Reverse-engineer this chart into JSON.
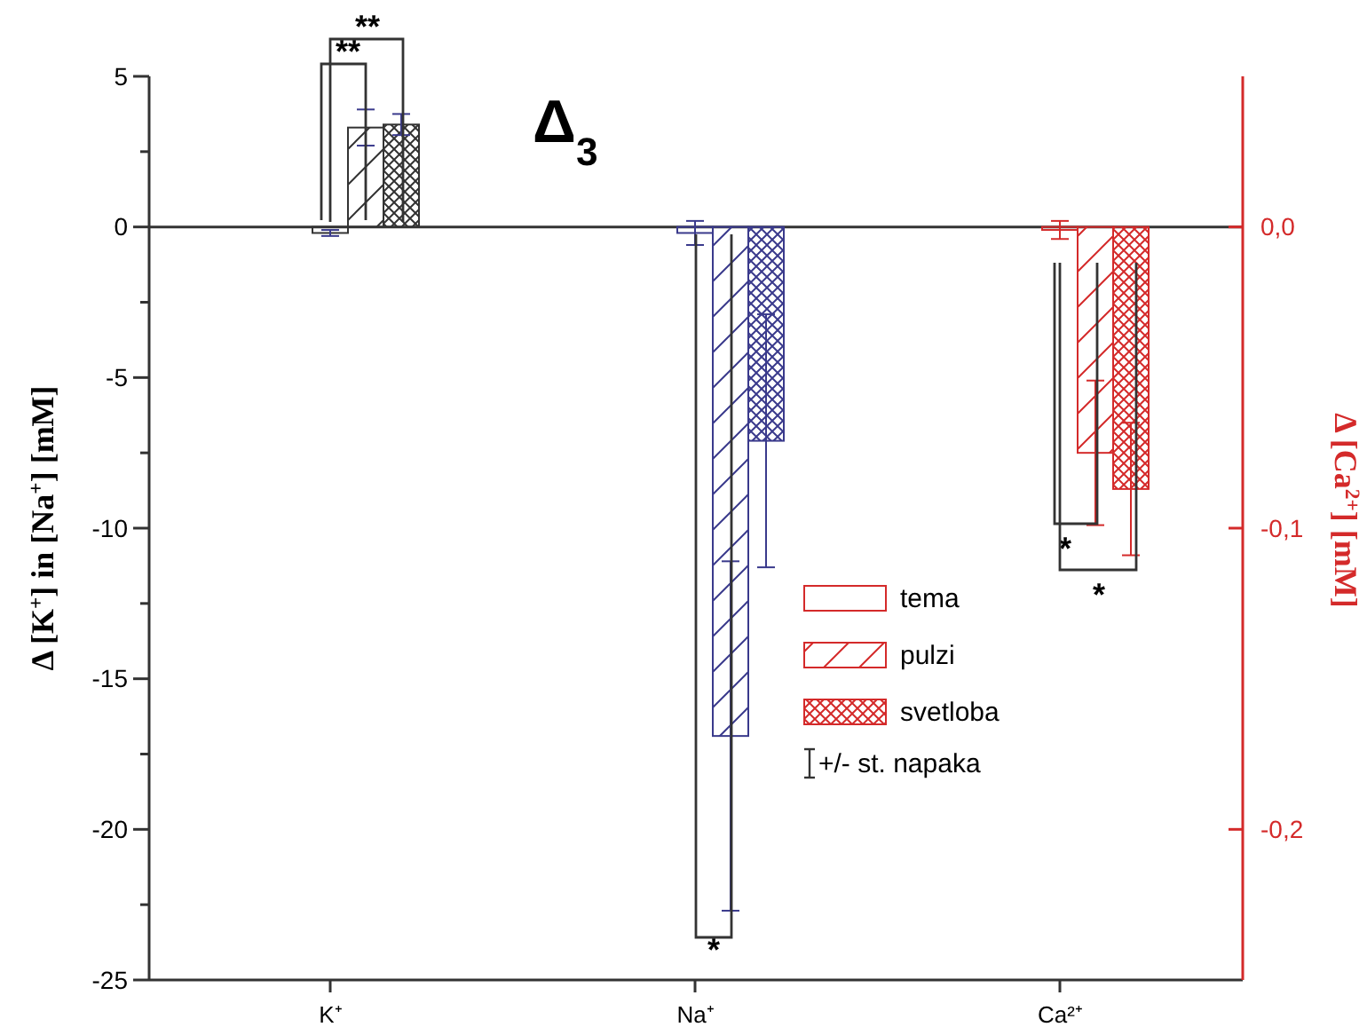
{
  "chart_data": {
    "type": "bar",
    "categories": [
      "K⁺",
      "Na⁺",
      "Ca²⁺"
    ],
    "ylabel": "Δ [K$^{+}$] in [Na$^{+}$] [mM]",
    "y2label": "Δ [Ca$^{2+}$] [mM]",
    "ylim": [
      -25,
      5
    ],
    "yticks": [
      -25,
      {
        "value": -22.5,
        "label": null
      },
      -20,
      {
        "value": -17.5,
        "label": null
      },
      -15,
      {
        "value": -12.5,
        "label": null
      },
      -10,
      {
        "value": -7.5,
        "label": null
      },
      -5,
      {
        "value": -2.5,
        "label": null
      },
      0,
      {
        "value": 2.5,
        "label": null
      },
      5
    ],
    "y2lim": [
      -0.25,
      0.05
    ],
    "y2ticks": [
      {
        "value": -0.2,
        "label": "-0,2"
      },
      {
        "value": -0.1,
        "label": "-0,1"
      },
      {
        "value": 0,
        "label": "0,0"
      }
    ],
    "series": [
      {
        "color": "#3a3a8c",
        "colors": [
          "#333333",
          "#3a3a8c",
          null
        ],
        "values": [
          -0.2,
          -0.2,
          null
        ],
        "errors": [
          0.1,
          0.4,
          null
        ]
      },
      {
        "color": "#3a3a8c",
        "colors": [
          "#333333",
          "#3a3a8c",
          null
        ],
        "values": [
          3.3,
          -16.9,
          null
        ],
        "errors": [
          0.6,
          5.8,
          null
        ]
      },
      {
        "color": "#3a3a8c",
        "colors": [
          "#333333",
          "#3a3a8c",
          null
        ],
        "values": [
          3.4,
          -7.1,
          null
        ],
        "errors": [
          0.35,
          4.2,
          null
        ]
      },
      {
        "name": "tema",
        "color": "#d42a2a",
        "axis": "y2",
        "values": [
          null,
          null,
          -0.001
        ],
        "errors": [
          null,
          null,
          0.003
        ]
      },
      {
        "name": "pulzi",
        "color": "#d42a2a",
        "axis": "y2",
        "values": [
          null,
          null,
          -0.075
        ],
        "errors": [
          null,
          null,
          0.024
        ]
      },
      {
        "name": "svetloba",
        "color": "#d42a2a",
        "axis": "y2",
        "values": [
          null,
          null,
          -0.087
        ],
        "errors": [
          null,
          null,
          0.022
        ]
      }
    ],
    "ref_lines": [
      {
        "axis": "y",
        "value": 0,
        "color": "#333333"
      }
    ],
    "legend": "right",
    "grid": false,
    "annotations": [
      "Δ$_{3}$",
      "**",
      "**",
      "*",
      "*",
      "*",
      "+/- st. napaka"
    ]
  }
}
